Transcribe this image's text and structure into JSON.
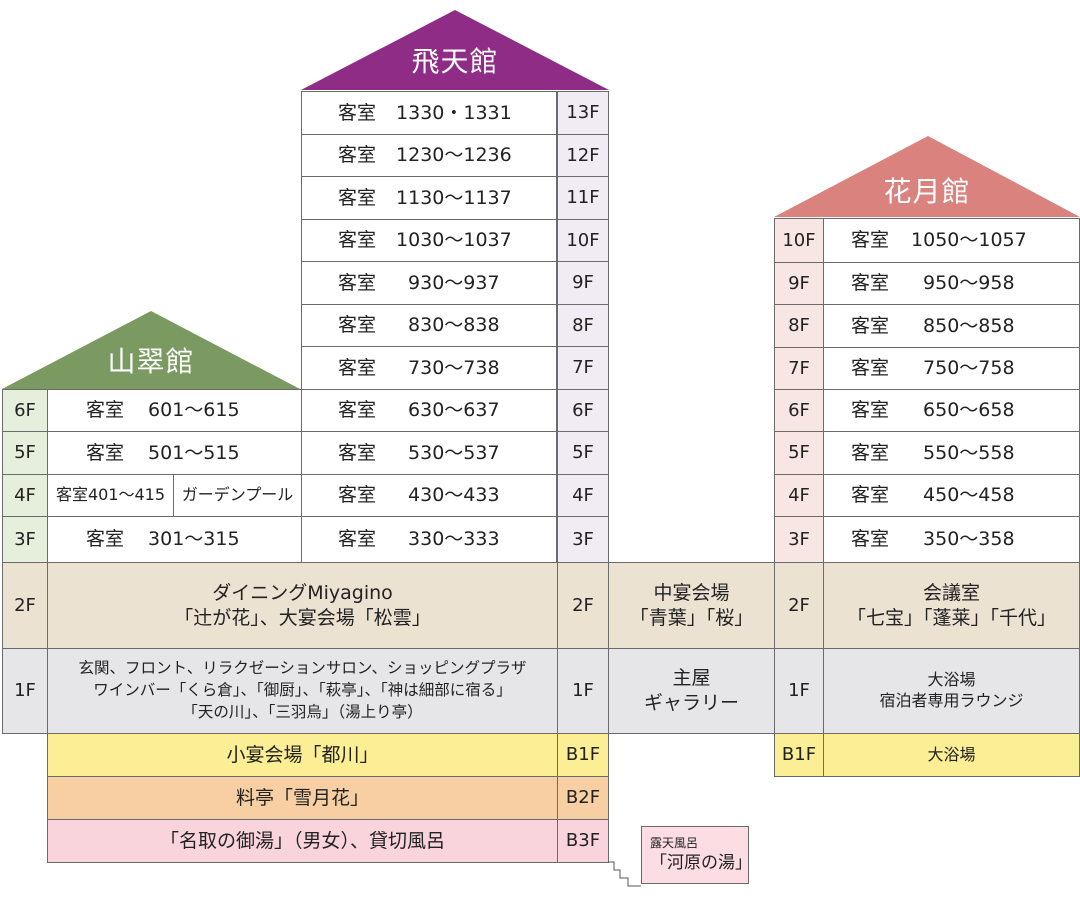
{
  "buildings": {
    "hiten": {
      "name": "飛天館",
      "color": "#8e2c86",
      "rooms": [
        {
          "floor": "13F",
          "label": "客室",
          "rooms": "1330・1331"
        },
        {
          "floor": "12F",
          "label": "客室",
          "rooms": "1230～1236"
        },
        {
          "floor": "11F",
          "label": "客室",
          "rooms": "1130～1137"
        },
        {
          "floor": "10F",
          "label": "客室",
          "rooms": "1030～1037"
        },
        {
          "floor": "9F",
          "label": "客室",
          "rooms": "930～937"
        },
        {
          "floor": "8F",
          "label": "客室",
          "rooms": "830～838"
        },
        {
          "floor": "7F",
          "label": "客室",
          "rooms": "730～738"
        },
        {
          "floor": "6F",
          "label": "客室",
          "rooms": "630～637"
        },
        {
          "floor": "5F",
          "label": "客室",
          "rooms": "530～537"
        },
        {
          "floor": "4F",
          "label": "客室",
          "rooms": "430～433"
        },
        {
          "floor": "3F",
          "label": "客室",
          "rooms": "330～333"
        }
      ],
      "floor_2f": "2F",
      "floor_1f": "1F",
      "basement": [
        {
          "floor": "B1F",
          "text": "小宴会場「都川」"
        },
        {
          "floor": "B2F",
          "text": "料亭「雪月花」"
        },
        {
          "floor": "B3F",
          "text": "「名取の御湯」（男女）、貸切風呂"
        }
      ]
    },
    "sansui": {
      "name": "山翠館",
      "color": "#7a9a62",
      "rooms": [
        {
          "floor": "6F",
          "label": "客室",
          "rooms": "601～615"
        },
        {
          "floor": "5F",
          "label": "客室",
          "rooms": "501～515"
        },
        {
          "floor": "3F",
          "label": "客室",
          "rooms": "301～315"
        }
      ],
      "floor_4f": "4F",
      "rooms_4f": "客室401～415",
      "pool_4f": "ガーデンプール",
      "floor_2f": "2F",
      "dining_line1": "ダイニングMiyagino",
      "dining_line2": "「辻が花」、大宴会場「松雲」",
      "floor_1f": "1F",
      "lobby_line1": "玄関、フロント、リラクゼーションサロン、ショッピングプラザ",
      "lobby_line2": "ワインバー「くら倉」、「御厨」、「萩亭」、「神は細部に宿る」",
      "lobby_line3": "「天の川」、「三羽烏」（湯上り亭）"
    },
    "main": {
      "banquet_line1": "中宴会場",
      "banquet_line2": "「青葉」「桜」",
      "hall_line1": "主屋",
      "hall_line2": "ギャラリー"
    },
    "kagetsu": {
      "name": "花月館",
      "color": "#d9827e",
      "rooms": [
        {
          "floor": "10F",
          "label": "客室",
          "rooms": "1050～1057"
        },
        {
          "floor": "9F",
          "label": "客室",
          "rooms": "950～958"
        },
        {
          "floor": "8F",
          "label": "客室",
          "rooms": "850～858"
        },
        {
          "floor": "7F",
          "label": "客室",
          "rooms": "750～758"
        },
        {
          "floor": "6F",
          "label": "客室",
          "rooms": "650～658"
        },
        {
          "floor": "5F",
          "label": "客室",
          "rooms": "550～558"
        },
        {
          "floor": "4F",
          "label": "客室",
          "rooms": "450～458"
        },
        {
          "floor": "3F",
          "label": "客室",
          "rooms": "350～358"
        }
      ],
      "floor_2f": "2F",
      "meeting_line1": "会議室",
      "meeting_line2": "「七宝」「蓬莱」「千代」",
      "floor_1f": "1F",
      "bath_line1": "大浴場",
      "bath_line2": "宿泊者専用ラウンジ",
      "floor_b1f": "B1F",
      "b1f_text": "大浴場"
    }
  },
  "outdoor_bath": {
    "line1": "露天風呂",
    "line2": "「河原の湯」"
  },
  "colors": {
    "hiten_floor": "#f1ebf4",
    "sansui_floor": "#e6eedc",
    "kagetsu_floor": "#f8e6e4",
    "level_2f": "#ece2d2",
    "level_1f": "#e6e6e8",
    "b1f": "#fbee94",
    "b2f": "#f8cfa3",
    "b3f": "#f9d4dc",
    "outdoor": "#fbdde3"
  }
}
